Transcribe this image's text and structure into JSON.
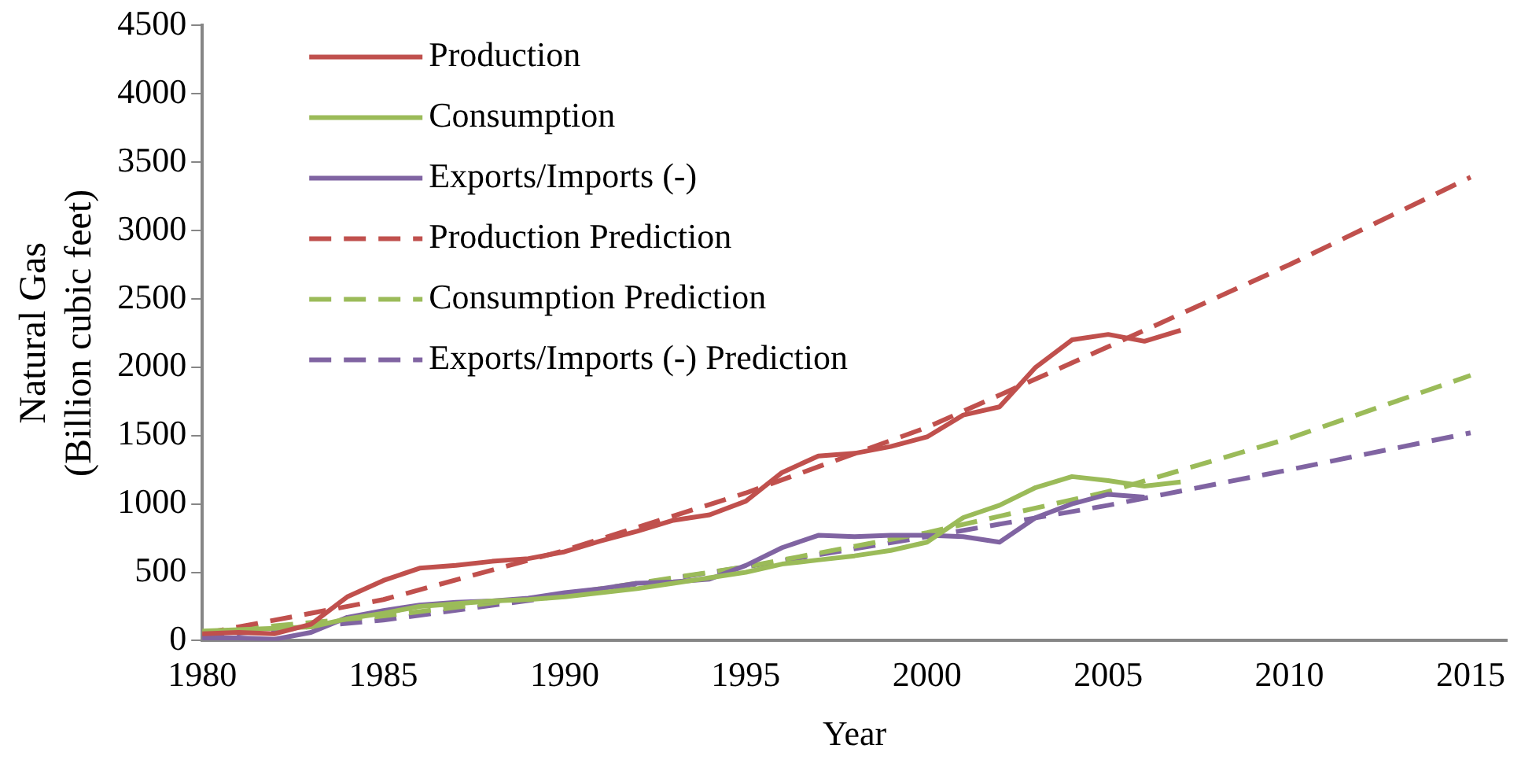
{
  "chart_data": {
    "type": "line",
    "xlabel": "Year",
    "ylabel": "Natural Gas\n(Billion cubic feet)",
    "xlim": [
      1980,
      2016
    ],
    "xticks": [
      1980,
      1985,
      1990,
      1995,
      2000,
      2005,
      2010,
      2015
    ],
    "ylim": [
      0,
      4500
    ],
    "yticks": [
      0,
      500,
      1000,
      1500,
      2000,
      2500,
      3000,
      3500,
      4000,
      4500
    ],
    "grid": false,
    "legend": "top left",
    "marker": "none",
    "series": [
      {
        "name": "Production",
        "color": "#c0504d",
        "line_style": "solid",
        "x": [
          1980,
          1981,
          1982,
          1983,
          1984,
          1985,
          1986,
          1987,
          1988,
          1989,
          1990,
          1991,
          1992,
          1993,
          1994,
          1995,
          1996,
          1997,
          1998,
          1999,
          2000,
          2001,
          2002,
          2003,
          2004,
          2005,
          2006,
          2007
        ],
        "values": [
          50,
          60,
          50,
          120,
          320,
          440,
          530,
          550,
          580,
          600,
          650,
          730,
          800,
          880,
          920,
          1020,
          1230,
          1350,
          1370,
          1420,
          1490,
          1650,
          1710,
          2000,
          2200,
          2240,
          2190,
          2270
        ]
      },
      {
        "name": "Consumption",
        "color": "#9bbb59",
        "line_style": "solid",
        "x": [
          1980,
          1981,
          1982,
          1983,
          1984,
          1985,
          1986,
          1987,
          1988,
          1989,
          1990,
          1991,
          1992,
          1993,
          1994,
          1995,
          1996,
          1997,
          1998,
          1999,
          2000,
          2001,
          2002,
          2003,
          2004,
          2005,
          2006,
          2007
        ],
        "values": [
          70,
          80,
          90,
          100,
          160,
          200,
          250,
          270,
          290,
          300,
          320,
          350,
          380,
          420,
          460,
          500,
          560,
          590,
          620,
          660,
          720,
          900,
          990,
          1120,
          1200,
          1170,
          1130,
          1160
        ]
      },
      {
        "name": "Exports/Imports (-)",
        "color": "#8064a2",
        "line_style": "solid",
        "x": [
          1980,
          1981,
          1982,
          1983,
          1984,
          1985,
          1986,
          1987,
          1988,
          1989,
          1990,
          1991,
          1992,
          1993,
          1994,
          1995,
          1996,
          1997,
          1998,
          1999,
          2000,
          2001,
          2002,
          2003,
          2004,
          2005,
          2006
        ],
        "values": [
          20,
          20,
          10,
          60,
          170,
          220,
          260,
          280,
          290,
          310,
          350,
          380,
          420,
          430,
          450,
          550,
          680,
          770,
          760,
          770,
          770,
          760,
          720,
          900,
          1000,
          1070,
          1050
        ]
      },
      {
        "name": "Production Prediction",
        "color": "#c0504d",
        "line_style": "dashed",
        "x": [
          1980,
          1985,
          1990,
          1995,
          2000,
          2005,
          2010,
          2015
        ],
        "values": [
          50,
          300,
          660,
          1080,
          1560,
          2150,
          2750,
          3390
        ]
      },
      {
        "name": "Consumption Prediction",
        "color": "#9bbb59",
        "line_style": "dashed",
        "x": [
          1980,
          1985,
          1990,
          1995,
          2000,
          2005,
          2010,
          2015
        ],
        "values": [
          60,
          180,
          340,
          540,
          790,
          1090,
          1480,
          1940
        ]
      },
      {
        "name": "Exports/Imports (-) Prediction",
        "color": "#8064a2",
        "line_style": "dashed",
        "x": [
          1980,
          1985,
          1990,
          1995,
          2000,
          2005,
          2010,
          2015
        ],
        "values": [
          30,
          150,
          330,
          540,
          760,
          990,
          1250,
          1520
        ]
      }
    ]
  }
}
